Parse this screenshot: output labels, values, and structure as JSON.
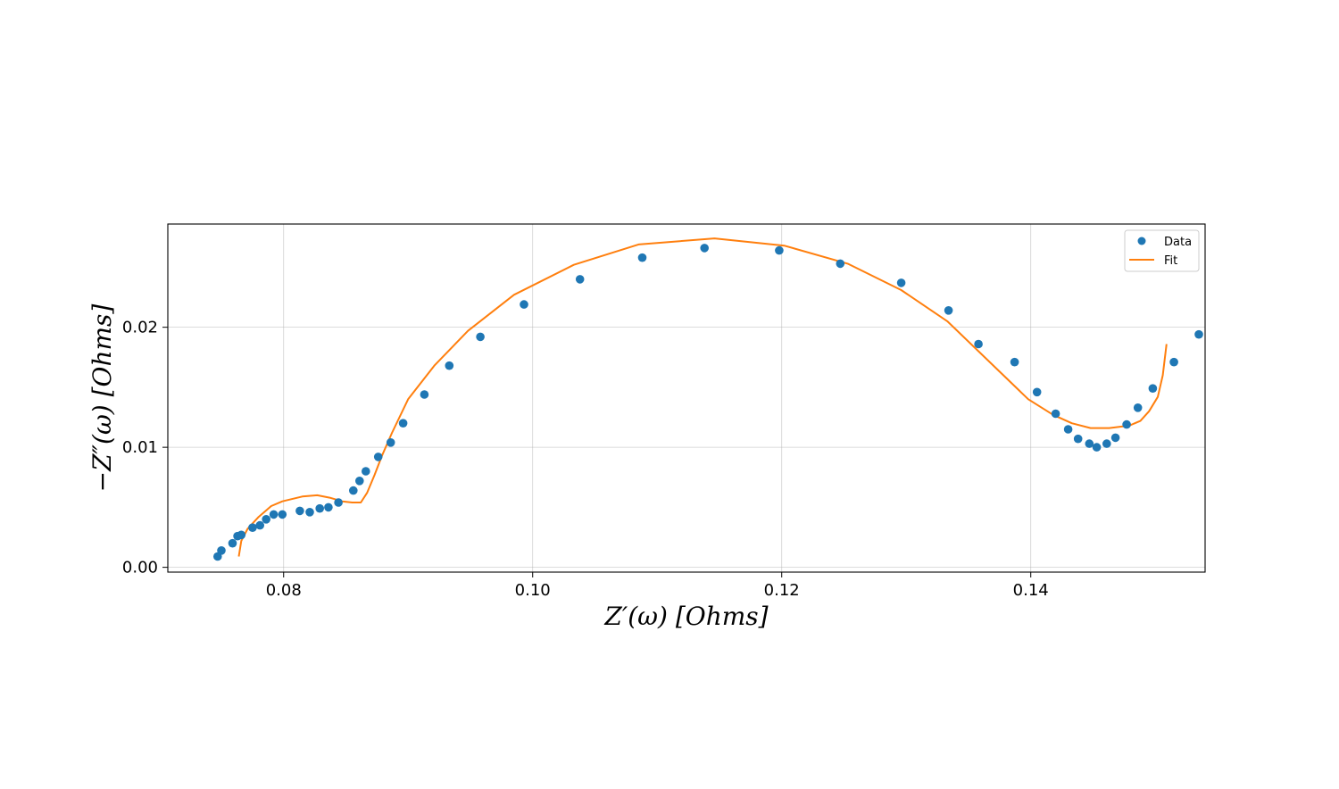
{
  "chart_data": {
    "type": "scatter",
    "xlabel": "Z′(ω) [Ohms]",
    "ylabel": "−Z″(ω) [Ohms]",
    "xlim": [
      0.0707,
      0.154
    ],
    "ylim": [
      -0.0004,
      0.0286
    ],
    "grid": true,
    "legend_position": "top-right",
    "xticks": [
      {
        "value": 0.08,
        "label": "0.08"
      },
      {
        "value": 0.1,
        "label": "0.10"
      },
      {
        "value": 0.12,
        "label": "0.12"
      },
      {
        "value": 0.14,
        "label": "0.14"
      }
    ],
    "yticks": [
      {
        "value": 0.0,
        "label": "0.00"
      },
      {
        "value": 0.01,
        "label": "0.01"
      },
      {
        "value": 0.02,
        "label": "0.02"
      }
    ],
    "series": [
      {
        "name": "Data",
        "kind": "scatter",
        "color": "#1f77b4",
        "points": [
          [
            0.0747,
            0.0009
          ],
          [
            0.075,
            0.0014
          ],
          [
            0.0759,
            0.002
          ],
          [
            0.0763,
            0.0026
          ],
          [
            0.0766,
            0.0027
          ],
          [
            0.0775,
            0.0033
          ],
          [
            0.0781,
            0.0035
          ],
          [
            0.0786,
            0.004
          ],
          [
            0.0792,
            0.0044
          ],
          [
            0.0799,
            0.0044
          ],
          [
            0.0813,
            0.0047
          ],
          [
            0.0821,
            0.0046
          ],
          [
            0.0829,
            0.0049
          ],
          [
            0.0836,
            0.005
          ],
          [
            0.0844,
            0.0054
          ],
          [
            0.0856,
            0.0064
          ],
          [
            0.0861,
            0.0072
          ],
          [
            0.0866,
            0.008
          ],
          [
            0.0876,
            0.0092
          ],
          [
            0.0886,
            0.0104
          ],
          [
            0.0896,
            0.012
          ],
          [
            0.0913,
            0.0144
          ],
          [
            0.0933,
            0.0168
          ],
          [
            0.0958,
            0.0192
          ],
          [
            0.0993,
            0.0219
          ],
          [
            0.1038,
            0.024
          ],
          [
            0.1088,
            0.0258
          ],
          [
            0.1138,
            0.0266
          ],
          [
            0.1198,
            0.0264
          ],
          [
            0.1247,
            0.0253
          ],
          [
            0.1296,
            0.0237
          ],
          [
            0.1334,
            0.0214
          ],
          [
            0.1358,
            0.0186
          ],
          [
            0.1387,
            0.0171
          ],
          [
            0.1405,
            0.0146
          ],
          [
            0.142,
            0.0128
          ],
          [
            0.143,
            0.0115
          ],
          [
            0.1438,
            0.0107
          ],
          [
            0.1447,
            0.0103
          ],
          [
            0.1453,
            0.01
          ],
          [
            0.1461,
            0.0103
          ],
          [
            0.1468,
            0.0108
          ],
          [
            0.1477,
            0.0119
          ],
          [
            0.1486,
            0.0133
          ],
          [
            0.1498,
            0.0149
          ],
          [
            0.1515,
            0.0171
          ],
          [
            0.1535,
            0.0194
          ]
        ]
      },
      {
        "name": "Fit",
        "kind": "line",
        "color": "#ff7f0e",
        "points": [
          [
            0.0764,
            0.0009
          ],
          [
            0.0766,
            0.0022
          ],
          [
            0.0771,
            0.0032
          ],
          [
            0.078,
            0.0042
          ],
          [
            0.079,
            0.0051
          ],
          [
            0.0799,
            0.0055
          ],
          [
            0.0815,
            0.0059
          ],
          [
            0.0827,
            0.006
          ],
          [
            0.0837,
            0.0058
          ],
          [
            0.0847,
            0.0055
          ],
          [
            0.0855,
            0.0054
          ],
          [
            0.0862,
            0.0054
          ],
          [
            0.0867,
            0.0062
          ],
          [
            0.0873,
            0.0077
          ],
          [
            0.0879,
            0.0093
          ],
          [
            0.0887,
            0.0112
          ],
          [
            0.09,
            0.014
          ],
          [
            0.0921,
            0.0168
          ],
          [
            0.0948,
            0.0197
          ],
          [
            0.0985,
            0.0227
          ],
          [
            0.1033,
            0.0252
          ],
          [
            0.1085,
            0.0269
          ],
          [
            0.1146,
            0.0274
          ],
          [
            0.1202,
            0.0268
          ],
          [
            0.1253,
            0.0253
          ],
          [
            0.1296,
            0.0231
          ],
          [
            0.1333,
            0.0205
          ],
          [
            0.1368,
            0.017
          ],
          [
            0.1398,
            0.014
          ],
          [
            0.1418,
            0.0127
          ],
          [
            0.1433,
            0.012
          ],
          [
            0.1448,
            0.0116
          ],
          [
            0.1463,
            0.0116
          ],
          [
            0.1479,
            0.0118
          ],
          [
            0.1488,
            0.0122
          ],
          [
            0.1495,
            0.013
          ],
          [
            0.1502,
            0.0142
          ],
          [
            0.1506,
            0.016
          ],
          [
            0.1509,
            0.0186
          ]
        ]
      }
    ]
  }
}
